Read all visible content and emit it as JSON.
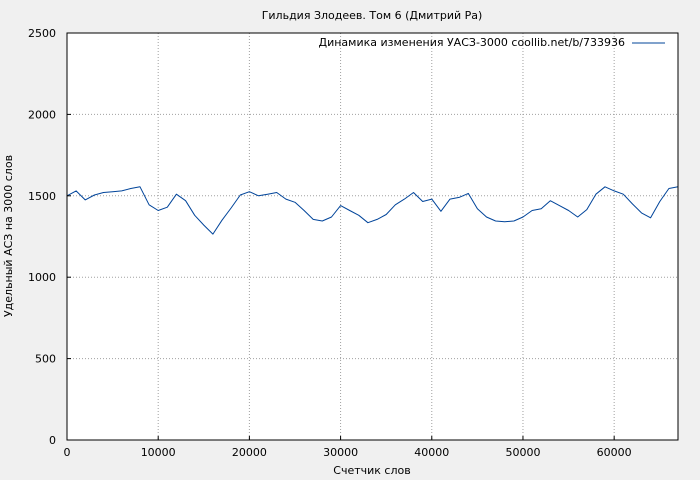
{
  "chart_data": {
    "type": "line",
    "title": "Гильдия Злодеев. Том 6 (Дмитрий Ра)",
    "xlabel": "Счетчик слов",
    "ylabel": "Удельный АСЗ на 3000 слов",
    "xlim": [
      0,
      67000
    ],
    "ylim": [
      0,
      2500
    ],
    "x_ticks": [
      0,
      10000,
      20000,
      30000,
      40000,
      50000,
      60000
    ],
    "y_ticks": [
      0,
      500,
      1000,
      1500,
      2000,
      2500
    ],
    "x_tick_labels": [
      "0",
      "10000",
      "20000",
      "30000",
      "40000",
      "50000",
      "60000"
    ],
    "y_tick_labels": [
      "0",
      "500",
      "1000",
      "1500",
      "2000",
      "2500"
    ],
    "grid": true,
    "legend_position": "top-right",
    "series": [
      {
        "name": "Динамика изменения УАСЗ-3000 coollib.net/b/733936",
        "color": "#00449a",
        "x": [
          0,
          1000,
          2000,
          3000,
          4000,
          5000,
          6000,
          7000,
          8000,
          9000,
          10000,
          11000,
          12000,
          13000,
          14000,
          15000,
          16000,
          17000,
          18000,
          19000,
          20000,
          21000,
          22000,
          23000,
          24000,
          25000,
          26000,
          27000,
          28000,
          29000,
          30000,
          31000,
          32000,
          33000,
          34000,
          35000,
          36000,
          37000,
          38000,
          39000,
          40000,
          41000,
          42000,
          43000,
          44000,
          45000,
          46000,
          47000,
          48000,
          49000,
          50000,
          51000,
          52000,
          53000,
          54000,
          55000,
          56000,
          57000,
          58000,
          59000,
          60000,
          61000,
          62000,
          63000,
          64000,
          65000,
          66000,
          67000
        ],
        "y": [
          1500,
          1530,
          1475,
          1505,
          1520,
          1525,
          1530,
          1545,
          1555,
          1445,
          1410,
          1430,
          1510,
          1470,
          1380,
          1320,
          1265,
          1350,
          1425,
          1505,
          1525,
          1500,
          1510,
          1520,
          1480,
          1460,
          1410,
          1355,
          1345,
          1370,
          1440,
          1410,
          1380,
          1335,
          1355,
          1385,
          1445,
          1480,
          1520,
          1465,
          1480,
          1405,
          1480,
          1490,
          1515,
          1420,
          1370,
          1345,
          1340,
          1345,
          1370,
          1410,
          1420,
          1470,
          1440,
          1410,
          1370,
          1415,
          1510,
          1555,
          1530,
          1510,
          1450,
          1395,
          1365,
          1465,
          1545,
          1555
        ]
      }
    ]
  }
}
